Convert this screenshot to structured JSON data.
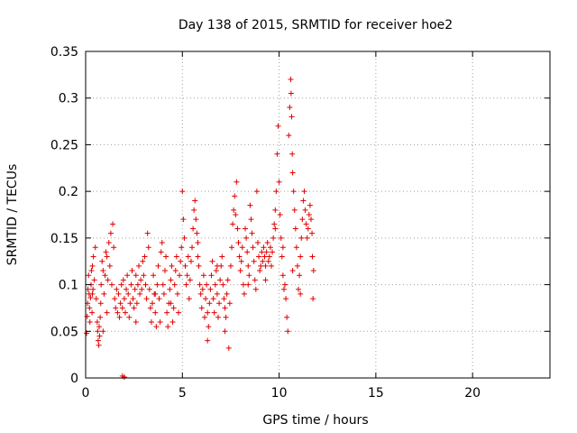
{
  "chart_data": {
    "type": "scatter",
    "title": "Day 138 of 2015, SRMTID for receiver hoe2",
    "xlabel": "GPS time / hours",
    "ylabel": "SRMTID / TECUs",
    "xlim": [
      0,
      24
    ],
    "ylim": [
      0,
      0.35
    ],
    "x_ticks": [
      0,
      5,
      10,
      15,
      20
    ],
    "x_tick_labels": [
      "0",
      "5",
      "10",
      "15",
      "20"
    ],
    "y_ticks": [
      0,
      0.05,
      0.1,
      0.15,
      0.2,
      0.25,
      0.3,
      0.35
    ],
    "y_tick_labels": [
      "0",
      "0.05",
      "0.1",
      "0.15",
      "0.2",
      "0.25",
      "0.3",
      "0.35"
    ],
    "grid": true,
    "marker": "plus",
    "color": "#e00000",
    "series": [
      {
        "points": [
          [
            0.05,
            0.048
          ],
          [
            0.08,
            0.066
          ],
          [
            0.1,
            0.08
          ],
          [
            0.12,
            0.095
          ],
          [
            0.15,
            0.11
          ],
          [
            0.18,
            0.09
          ],
          [
            0.2,
            0.075
          ],
          [
            0.22,
            0.06
          ],
          [
            0.25,
            0.086
          ],
          [
            0.28,
            0.1
          ],
          [
            0.3,
            0.115
          ],
          [
            0.33,
            0.07
          ],
          [
            0.35,
            0.12
          ],
          [
            0.38,
            0.095
          ],
          [
            0.4,
            0.13
          ],
          [
            0.45,
            0.105
          ],
          [
            0.5,
            0.14
          ],
          [
            0.55,
            0.085
          ],
          [
            0.6,
            0.06
          ],
          [
            0.62,
            0.05
          ],
          [
            0.65,
            0.04
          ],
          [
            0.68,
            0.035
          ],
          [
            0.7,
            0.055
          ],
          [
            0.72,
            0.045
          ],
          [
            0.75,
            0.065
          ],
          [
            0.78,
            0.08
          ],
          [
            0.8,
            0.1
          ],
          [
            0.85,
            0.125
          ],
          [
            0.9,
            0.115
          ],
          [
            0.95,
            0.09
          ],
          [
            1.0,
            0.11
          ],
          [
            1.05,
            0.135
          ],
          [
            1.1,
            0.13
          ],
          [
            1.15,
            0.105
          ],
          [
            1.2,
            0.145
          ],
          [
            1.25,
            0.12
          ],
          [
            1.3,
            0.155
          ],
          [
            1.35,
            0.1
          ],
          [
            1.4,
            0.165
          ],
          [
            1.45,
            0.14
          ],
          [
            1.5,
            0.085
          ],
          [
            1.55,
            0.075
          ],
          [
            1.6,
            0.095
          ],
          [
            1.65,
            0.07
          ],
          [
            1.7,
            0.09
          ],
          [
            1.75,
            0.065
          ],
          [
            1.8,
            0.08
          ],
          [
            1.85,
            0.1
          ],
          [
            1.9,
            0.075
          ],
          [
            1.95,
            0.105
          ],
          [
            2.0,
            0.085
          ],
          [
            2.05,
            0.07
          ],
          [
            2.1,
            0.095
          ],
          [
            2.15,
            0.11
          ],
          [
            2.2,
            0.09
          ],
          [
            2.25,
            0.065
          ],
          [
            2.3,
            0.08
          ],
          [
            2.35,
            0.1
          ],
          [
            2.4,
            0.115
          ],
          [
            2.45,
            0.085
          ],
          [
            2.5,
            0.075
          ],
          [
            2.55,
            0.095
          ],
          [
            2.6,
            0.11
          ],
          [
            2.65,
            0.08
          ],
          [
            2.7,
            0.1
          ],
          [
            2.75,
            0.12
          ],
          [
            2.8,
            0.09
          ],
          [
            2.85,
            0.105
          ],
          [
            2.9,
            0.095
          ],
          [
            2.95,
            0.125
          ],
          [
            3.0,
            0.11
          ],
          [
            3.05,
            0.13
          ],
          [
            3.1,
            0.1
          ],
          [
            3.15,
            0.085
          ],
          [
            3.2,
            0.155
          ],
          [
            3.25,
            0.14
          ],
          [
            3.3,
            0.095
          ],
          [
            3.35,
            0.075
          ],
          [
            3.4,
            0.06
          ],
          [
            3.45,
            0.08
          ],
          [
            3.5,
            0.11
          ],
          [
            3.55,
            0.09
          ],
          [
            3.6,
            0.07
          ],
          [
            3.65,
            0.055
          ],
          [
            3.7,
            0.1
          ],
          [
            3.75,
            0.12
          ],
          [
            3.8,
            0.085
          ],
          [
            3.85,
            0.06
          ],
          [
            3.9,
            0.135
          ],
          [
            3.95,
            0.145
          ],
          [
            4.0,
            0.1
          ],
          [
            4.05,
            0.09
          ],
          [
            4.1,
            0.115
          ],
          [
            4.15,
            0.13
          ],
          [
            4.2,
            0.07
          ],
          [
            4.25,
            0.055
          ],
          [
            4.3,
            0.08
          ],
          [
            4.35,
            0.095
          ],
          [
            4.4,
            0.105
          ],
          [
            4.45,
            0.12
          ],
          [
            4.5,
            0.06
          ],
          [
            4.55,
            0.075
          ],
          [
            4.6,
            0.1
          ],
          [
            4.65,
            0.115
          ],
          [
            4.7,
            0.13
          ],
          [
            4.75,
            0.09
          ],
          [
            4.8,
            0.07
          ],
          [
            4.85,
            0.11
          ],
          [
            4.9,
            0.125
          ],
          [
            4.95,
            0.14
          ],
          [
            5.0,
            0.2
          ],
          [
            5.05,
            0.17
          ],
          [
            5.1,
            0.15
          ],
          [
            5.15,
            0.12
          ],
          [
            5.2,
            0.1
          ],
          [
            5.25,
            0.11
          ],
          [
            5.3,
            0.13
          ],
          [
            5.35,
            0.085
          ],
          [
            5.4,
            0.105
          ],
          [
            5.45,
            0.125
          ],
          [
            5.5,
            0.14
          ],
          [
            5.55,
            0.16
          ],
          [
            5.6,
            0.18
          ],
          [
            5.65,
            0.19
          ],
          [
            5.7,
            0.17
          ],
          [
            5.75,
            0.155
          ],
          [
            5.8,
            0.145
          ],
          [
            5.85,
            0.12
          ],
          [
            5.9,
            0.1
          ],
          [
            5.95,
            0.09
          ],
          [
            6.0,
            0.075
          ],
          [
            6.05,
            0.095
          ],
          [
            6.1,
            0.11
          ],
          [
            6.15,
            0.065
          ],
          [
            6.2,
            0.085
          ],
          [
            6.25,
            0.1
          ],
          [
            6.3,
            0.07
          ],
          [
            6.35,
            0.055
          ],
          [
            6.4,
            0.08
          ],
          [
            6.45,
            0.095
          ],
          [
            6.5,
            0.11
          ],
          [
            6.55,
            0.125
          ],
          [
            6.6,
            0.085
          ],
          [
            6.65,
            0.07
          ],
          [
            6.7,
            0.1
          ],
          [
            6.75,
            0.115
          ],
          [
            6.8,
            0.09
          ],
          [
            6.85,
            0.065
          ],
          [
            6.9,
            0.08
          ],
          [
            6.95,
            0.105
          ],
          [
            7.0,
            0.12
          ],
          [
            7.05,
            0.13
          ],
          [
            7.1,
            0.1
          ],
          [
            7.15,
            0.085
          ],
          [
            7.2,
            0.075
          ],
          [
            7.25,
            0.065
          ],
          [
            7.3,
            0.09
          ],
          [
            7.35,
            0.105
          ],
          [
            7.4,
            0.032
          ],
          [
            7.45,
            0.08
          ],
          [
            7.5,
            0.12
          ],
          [
            7.55,
            0.14
          ],
          [
            7.6,
            0.165
          ],
          [
            7.65,
            0.18
          ],
          [
            7.7,
            0.195
          ],
          [
            7.75,
            0.175
          ],
          [
            7.8,
            0.21
          ],
          [
            7.85,
            0.16
          ],
          [
            7.9,
            0.145
          ],
          [
            7.95,
            0.13
          ],
          [
            8.0,
            0.115
          ],
          [
            8.05,
            0.125
          ],
          [
            8.1,
            0.14
          ],
          [
            8.15,
            0.1
          ],
          [
            8.2,
            0.09
          ],
          [
            8.25,
            0.16
          ],
          [
            8.3,
            0.15
          ],
          [
            8.35,
            0.135
          ],
          [
            8.4,
            0.12
          ],
          [
            8.45,
            0.11
          ],
          [
            8.5,
            0.185
          ],
          [
            8.55,
            0.17
          ],
          [
            8.6,
            0.155
          ],
          [
            8.65,
            0.14
          ],
          [
            8.7,
            0.125
          ],
          [
            8.75,
            0.105
          ],
          [
            8.8,
            0.095
          ],
          [
            8.85,
            0.2
          ],
          [
            8.9,
            0.145
          ],
          [
            8.95,
            0.13
          ],
          [
            9.0,
            0.115
          ],
          [
            9.05,
            0.12
          ],
          [
            9.1,
            0.135
          ],
          [
            9.15,
            0.125
          ],
          [
            9.2,
            0.14
          ],
          [
            9.25,
            0.13
          ],
          [
            9.3,
            0.12
          ],
          [
            9.35,
            0.135
          ],
          [
            9.4,
            0.145
          ],
          [
            9.45,
            0.125
          ],
          [
            9.5,
            0.13
          ],
          [
            9.55,
            0.14
          ],
          [
            9.6,
            0.12
          ],
          [
            9.65,
            0.135
          ],
          [
            9.7,
            0.15
          ],
          [
            9.75,
            0.165
          ],
          [
            9.8,
            0.18
          ],
          [
            9.85,
            0.2
          ],
          [
            9.9,
            0.24
          ],
          [
            9.95,
            0.27
          ],
          [
            10.0,
            0.21
          ],
          [
            10.05,
            0.175
          ],
          [
            10.1,
            0.15
          ],
          [
            10.15,
            0.13
          ],
          [
            10.2,
            0.11
          ],
          [
            10.25,
            0.095
          ],
          [
            10.3,
            0.1
          ],
          [
            10.35,
            0.085
          ],
          [
            10.4,
            0.065
          ],
          [
            10.45,
            0.05
          ],
          [
            10.5,
            0.26
          ],
          [
            10.55,
            0.29
          ],
          [
            10.6,
            0.32
          ],
          [
            10.62,
            0.305
          ],
          [
            10.65,
            0.28
          ],
          [
            10.68,
            0.24
          ],
          [
            10.7,
            0.22
          ],
          [
            10.75,
            0.2
          ],
          [
            10.8,
            0.18
          ],
          [
            10.85,
            0.16
          ],
          [
            10.9,
            0.14
          ],
          [
            10.95,
            0.12
          ],
          [
            11.0,
            0.095
          ],
          [
            11.05,
            0.11
          ],
          [
            11.1,
            0.13
          ],
          [
            11.15,
            0.15
          ],
          [
            11.2,
            0.17
          ],
          [
            11.25,
            0.19
          ],
          [
            11.3,
            0.2
          ],
          [
            11.35,
            0.18
          ],
          [
            11.4,
            0.165
          ],
          [
            11.45,
            0.15
          ],
          [
            11.5,
            0.16
          ],
          [
            11.55,
            0.175
          ],
          [
            11.6,
            0.185
          ],
          [
            11.65,
            0.17
          ],
          [
            11.7,
            0.155
          ],
          [
            11.72,
            0.13
          ],
          [
            11.75,
            0.085
          ],
          [
            11.78,
            0.115
          ],
          [
            0.35,
            0.09
          ],
          [
            1.1,
            0.07
          ],
          [
            2.6,
            0.06
          ],
          [
            3.6,
            0.09
          ],
          [
            4.4,
            0.08
          ],
          [
            5.8,
            0.13
          ],
          [
            6.8,
            0.12
          ],
          [
            8.4,
            0.1
          ],
          [
            9.3,
            0.105
          ],
          [
            10.7,
            0.115
          ],
          [
            1.9,
            0.002
          ],
          [
            2.0,
            0.001
          ],
          [
            0.9,
            0.05
          ],
          [
            6.3,
            0.04
          ],
          [
            7.2,
            0.05
          ],
          [
            9.8,
            0.16
          ],
          [
            10.2,
            0.14
          ],
          [
            11.1,
            0.09
          ]
        ]
      }
    ]
  }
}
